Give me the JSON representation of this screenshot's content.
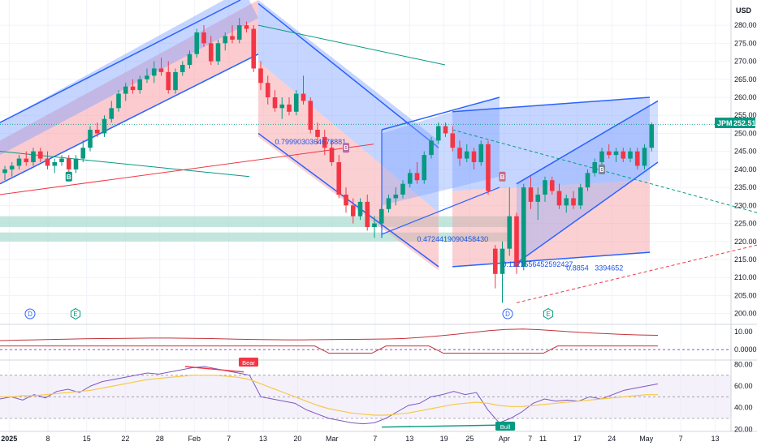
{
  "currency": "USD",
  "symbol": "JPM",
  "last_price": "252.51",
  "colors": {
    "up": "#089981",
    "down": "#f23645",
    "channel_blue": "#2962ff",
    "zone_teal": "#a8dccf",
    "osc_red": "#c2343c",
    "rsi_purple": "#7e57c2",
    "rsi_ma": "#f7c948",
    "grid": "#f0f3fa"
  },
  "chart_data": [
    {
      "type": "candlestick",
      "y_ticks": [
        "200.00",
        "205.00",
        "210.00",
        "215.00",
        "220.00",
        "225.00",
        "230.00",
        "235.00",
        "240.00",
        "245.00",
        "250.00",
        "255.00",
        "260.00",
        "265.00",
        "270.00",
        "275.00",
        "280.00"
      ],
      "ylim": [
        197,
        287
      ],
      "x_ticks": [
        "2025",
        "8",
        "15",
        "22",
        "28",
        "Feb",
        "7",
        "13",
        "20",
        "Mar",
        "7",
        "13",
        "19",
        "25",
        "Apr",
        "7",
        "11",
        "17",
        "24",
        "May",
        "7",
        "13"
      ],
      "candles": [
        {
          "o": 239,
          "h": 241,
          "l": 237,
          "c": 240
        },
        {
          "o": 240,
          "h": 242,
          "l": 238,
          "c": 241
        },
        {
          "o": 241,
          "h": 244,
          "l": 240,
          "c": 243
        },
        {
          "o": 243,
          "h": 245,
          "l": 241,
          "c": 242
        },
        {
          "o": 242,
          "h": 246,
          "l": 241,
          "c": 245
        },
        {
          "o": 245,
          "h": 246,
          "l": 242,
          "c": 243
        },
        {
          "o": 243,
          "h": 245,
          "l": 240,
          "c": 241
        },
        {
          "o": 241,
          "h": 243,
          "l": 239,
          "c": 242
        },
        {
          "o": 242,
          "h": 244,
          "l": 241,
          "c": 243
        },
        {
          "o": 243,
          "h": 244,
          "l": 238,
          "c": 240
        },
        {
          "o": 240,
          "h": 244,
          "l": 239,
          "c": 243
        },
        {
          "o": 243,
          "h": 248,
          "l": 242,
          "c": 246
        },
        {
          "o": 246,
          "h": 252,
          "l": 245,
          "c": 251
        },
        {
          "o": 251,
          "h": 253,
          "l": 249,
          "c": 250
        },
        {
          "o": 250,
          "h": 255,
          "l": 249,
          "c": 254
        },
        {
          "o": 254,
          "h": 259,
          "l": 253,
          "c": 257
        },
        {
          "o": 257,
          "h": 262,
          "l": 256,
          "c": 261
        },
        {
          "o": 261,
          "h": 264,
          "l": 259,
          "c": 263
        },
        {
          "o": 263,
          "h": 265,
          "l": 261,
          "c": 262
        },
        {
          "o": 262,
          "h": 266,
          "l": 261,
          "c": 265
        },
        {
          "o": 265,
          "h": 268,
          "l": 264,
          "c": 266
        },
        {
          "o": 266,
          "h": 270,
          "l": 264,
          "c": 268
        },
        {
          "o": 268,
          "h": 271,
          "l": 266,
          "c": 267
        },
        {
          "o": 267,
          "h": 270,
          "l": 261,
          "c": 262
        },
        {
          "o": 262,
          "h": 268,
          "l": 261,
          "c": 267
        },
        {
          "o": 267,
          "h": 270,
          "l": 266,
          "c": 269
        },
        {
          "o": 269,
          "h": 273,
          "l": 268,
          "c": 272
        },
        {
          "o": 272,
          "h": 279,
          "l": 271,
          "c": 278
        },
        {
          "o": 278,
          "h": 280,
          "l": 274,
          "c": 275
        },
        {
          "o": 275,
          "h": 277,
          "l": 269,
          "c": 270
        },
        {
          "o": 270,
          "h": 276,
          "l": 269,
          "c": 275
        },
        {
          "o": 275,
          "h": 278,
          "l": 273,
          "c": 277
        },
        {
          "o": 277,
          "h": 280,
          "l": 275,
          "c": 276
        },
        {
          "o": 276,
          "h": 282,
          "l": 275,
          "c": 280
        },
        {
          "o": 280,
          "h": 281,
          "l": 278,
          "c": 279
        },
        {
          "o": 279,
          "h": 280,
          "l": 267,
          "c": 268
        },
        {
          "o": 268,
          "h": 270,
          "l": 262,
          "c": 264
        },
        {
          "o": 264,
          "h": 266,
          "l": 258,
          "c": 260
        },
        {
          "o": 260,
          "h": 262,
          "l": 256,
          "c": 257
        },
        {
          "o": 257,
          "h": 260,
          "l": 254,
          "c": 258
        },
        {
          "o": 258,
          "h": 260,
          "l": 255,
          "c": 256
        },
        {
          "o": 256,
          "h": 262,
          "l": 255,
          "c": 261
        },
        {
          "o": 261,
          "h": 266,
          "l": 258,
          "c": 259
        },
        {
          "o": 259,
          "h": 260,
          "l": 250,
          "c": 251
        },
        {
          "o": 251,
          "h": 253,
          "l": 247,
          "c": 249
        },
        {
          "o": 249,
          "h": 251,
          "l": 244,
          "c": 246
        },
        {
          "o": 246,
          "h": 248,
          "l": 241,
          "c": 242
        },
        {
          "o": 242,
          "h": 244,
          "l": 232,
          "c": 233
        },
        {
          "o": 233,
          "h": 235,
          "l": 228,
          "c": 230
        },
        {
          "o": 230,
          "h": 232,
          "l": 225,
          "c": 227
        },
        {
          "o": 227,
          "h": 232,
          "l": 226,
          "c": 231
        },
        {
          "o": 231,
          "h": 233,
          "l": 223,
          "c": 224
        },
        {
          "o": 224,
          "h": 227,
          "l": 221,
          "c": 225
        },
        {
          "o": 225,
          "h": 230,
          "l": 224,
          "c": 229
        },
        {
          "o": 229,
          "h": 233,
          "l": 228,
          "c": 232
        },
        {
          "o": 232,
          "h": 235,
          "l": 230,
          "c": 233
        },
        {
          "o": 233,
          "h": 237,
          "l": 232,
          "c": 236
        },
        {
          "o": 236,
          "h": 240,
          "l": 235,
          "c": 239
        },
        {
          "o": 239,
          "h": 242,
          "l": 236,
          "c": 237
        },
        {
          "o": 237,
          "h": 245,
          "l": 236,
          "c": 244
        },
        {
          "o": 244,
          "h": 249,
          "l": 243,
          "c": 248
        },
        {
          "o": 248,
          "h": 253,
          "l": 247,
          "c": 252
        },
        {
          "o": 252,
          "h": 253,
          "l": 249,
          "c": 250
        },
        {
          "o": 250,
          "h": 252,
          "l": 245,
          "c": 246
        },
        {
          "o": 246,
          "h": 248,
          "l": 241,
          "c": 243
        },
        {
          "o": 243,
          "h": 247,
          "l": 242,
          "c": 245
        },
        {
          "o": 245,
          "h": 246,
          "l": 240,
          "c": 242
        },
        {
          "o": 242,
          "h": 248,
          "l": 241,
          "c": 247
        },
        {
          "o": 247,
          "h": 248,
          "l": 233,
          "c": 234
        },
        {
          "o": 218,
          "h": 219,
          "l": 207,
          "c": 211
        },
        {
          "o": 211,
          "h": 220,
          "l": 203,
          "c": 218
        },
        {
          "o": 218,
          "h": 235,
          "l": 216,
          "c": 227
        },
        {
          "o": 227,
          "h": 228,
          "l": 211,
          "c": 213
        },
        {
          "o": 213,
          "h": 236,
          "l": 212,
          "c": 235
        },
        {
          "o": 235,
          "h": 238,
          "l": 229,
          "c": 231
        },
        {
          "o": 231,
          "h": 235,
          "l": 226,
          "c": 233
        },
        {
          "o": 233,
          "h": 238,
          "l": 231,
          "c": 237
        },
        {
          "o": 237,
          "h": 238,
          "l": 233,
          "c": 234
        },
        {
          "o": 234,
          "h": 236,
          "l": 229,
          "c": 230
        },
        {
          "o": 230,
          "h": 233,
          "l": 228,
          "c": 232
        },
        {
          "o": 232,
          "h": 234,
          "l": 229,
          "c": 230
        },
        {
          "o": 230,
          "h": 236,
          "l": 229,
          "c": 235
        },
        {
          "o": 235,
          "h": 240,
          "l": 234,
          "c": 239
        },
        {
          "o": 239,
          "h": 243,
          "l": 238,
          "c": 242
        },
        {
          "o": 242,
          "h": 246,
          "l": 241,
          "c": 245
        },
        {
          "o": 245,
          "h": 247,
          "l": 243,
          "c": 244
        },
        {
          "o": 244,
          "h": 246,
          "l": 242,
          "c": 245
        },
        {
          "o": 245,
          "h": 246,
          "l": 242,
          "c": 243
        },
        {
          "o": 243,
          "h": 246,
          "l": 242,
          "c": 245
        },
        {
          "o": 245,
          "h": 246,
          "l": 240,
          "c": 241
        },
        {
          "o": 241,
          "h": 247,
          "l": 240,
          "c": 246
        },
        {
          "o": 246,
          "h": 253,
          "l": 245,
          "c": 252.51
        }
      ],
      "fib_labels": [
        {
          "text": "0.7999030364678881",
          "at": [
            38,
            247
          ]
        },
        {
          "text": "0.4724419090458430",
          "at": [
            58,
            220
          ]
        },
        {
          "text": "0.1121556452592427",
          "at": [
            70,
            213
          ]
        },
        {
          "text": "0.8854",
          "at": [
            79,
            212
          ]
        },
        {
          "text": "3394652",
          "at": [
            83,
            212
          ]
        }
      ],
      "signal_badges": [
        "B",
        "B",
        "B",
        "B"
      ],
      "event_badges": [
        "D",
        "E",
        "D",
        "E"
      ]
    },
    {
      "type": "line",
      "y_ticks": [
        "10.00",
        "0.0000"
      ],
      "ylim": [
        -4,
        14
      ],
      "series": [
        {
          "values": [
            5,
            5.2,
            5.4,
            5.6,
            5.8,
            6,
            6.1,
            6.2,
            6.3,
            6.4,
            6.4,
            6.3,
            6.2,
            6,
            5.8,
            5.6,
            5.5,
            5.4,
            5.4,
            5.5,
            5.6,
            5.7,
            5.8,
            5.9,
            6.2,
            6.8,
            7.6,
            8.5,
            9.5,
            10.5,
            11.2,
            11.4,
            11,
            10.4,
            9.8,
            9.2,
            8.8,
            8.4,
            8.1,
            7.9
          ]
        },
        {
          "values": [
            2,
            2,
            2,
            2,
            2,
            2,
            2,
            2,
            2,
            2,
            2,
            2,
            2,
            2,
            2,
            2,
            2,
            2,
            2,
            2,
            2,
            2,
            2,
            -2,
            -2,
            -2,
            -2,
            2,
            2,
            2,
            2,
            -2,
            -2,
            -2,
            -2,
            -2,
            -2,
            -2,
            -2,
            2,
            2,
            2,
            2,
            2,
            2,
            2,
            2
          ]
        }
      ]
    },
    {
      "type": "line",
      "y_ticks": [
        "80.00",
        "60.00",
        "40.00",
        "20.00"
      ],
      "ylim": [
        18,
        84
      ],
      "series": [
        {
          "values": [
            48,
            50,
            47,
            52,
            49,
            55,
            57,
            54,
            60,
            64,
            66,
            68,
            70,
            72,
            71,
            73,
            75,
            77,
            78,
            76,
            74,
            72,
            70,
            50,
            48,
            46,
            44,
            38,
            34,
            30,
            28,
            26,
            25,
            26,
            30,
            36,
            42,
            44,
            50,
            52,
            55,
            52,
            54,
            38,
            26,
            30,
            36,
            44,
            48,
            46,
            47,
            46,
            50,
            48,
            52,
            56,
            58,
            60,
            62
          ]
        },
        {
          "values": [
            50,
            50,
            51,
            51,
            52,
            53,
            54,
            55,
            56,
            58,
            60,
            62,
            64,
            66,
            67,
            68,
            69,
            70,
            70,
            70,
            69,
            68,
            66,
            62,
            58,
            54,
            50,
            46,
            42,
            39,
            37,
            35,
            34,
            33,
            33,
            34,
            35,
            37,
            39,
            41,
            43,
            44,
            45,
            44,
            42,
            41,
            41,
            42,
            43,
            44,
            45,
            46,
            47,
            48,
            49,
            50,
            51,
            52,
            52
          ]
        }
      ],
      "badges": [
        "Bear",
        "Bull"
      ]
    }
  ]
}
